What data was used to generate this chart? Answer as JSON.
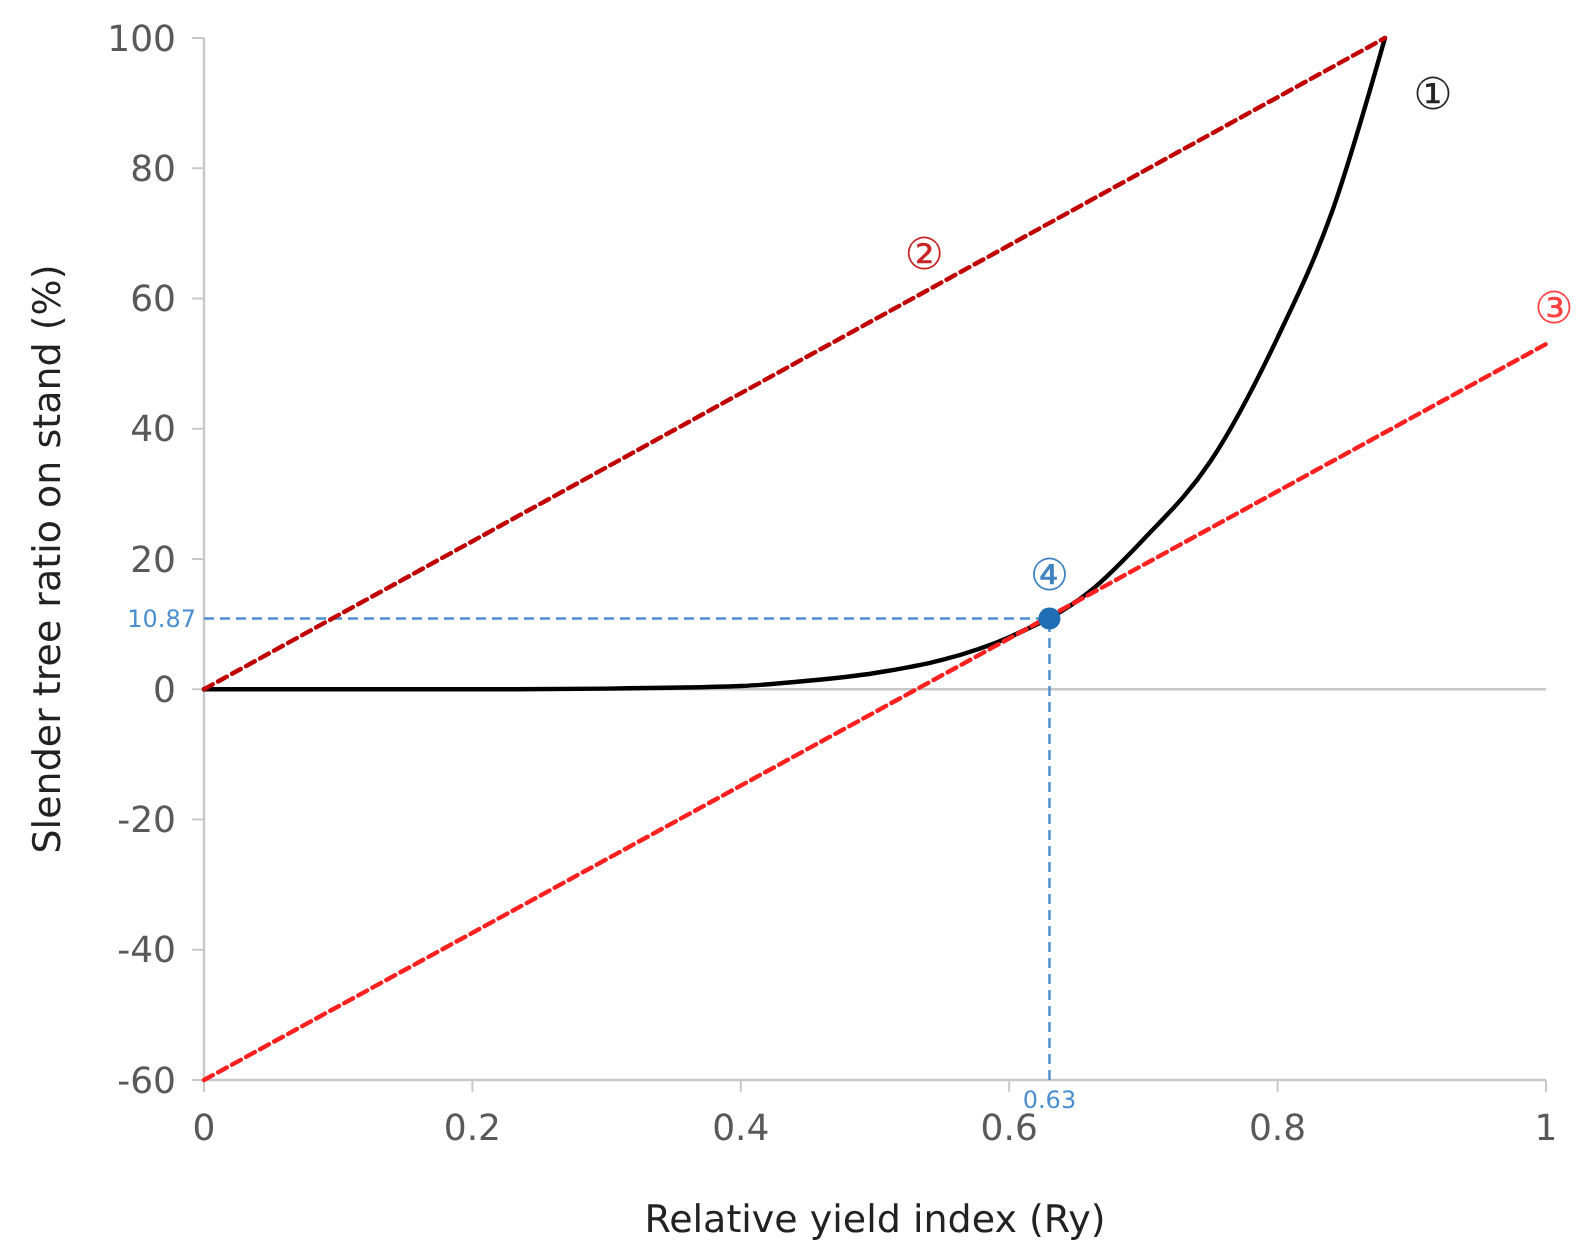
{
  "chart_data": {
    "type": "line",
    "xlabel": "Relative yield index (Ry)",
    "ylabel": "Slender tree ratio on stand (%)",
    "xlim": [
      0,
      1
    ],
    "ylim": [
      -60,
      100
    ],
    "xticks": [
      0,
      0.2,
      0.4,
      0.6,
      0.8,
      1
    ],
    "yticks": [
      -60,
      -40,
      -20,
      0,
      20,
      40,
      60,
      80,
      100
    ],
    "legend": false,
    "marker": "none",
    "series": [
      {
        "name": "①",
        "color": "#000000",
        "line_style": "solid",
        "x": [
          0,
          0.2,
          0.3,
          0.4,
          0.45,
          0.5,
          0.55,
          0.6,
          0.63,
          0.66,
          0.7,
          0.75,
          0.8,
          0.84,
          0.88
        ],
        "values": [
          0,
          0,
          0.1,
          0.5,
          1.3,
          2.5,
          4.5,
          8,
          null,
          15,
          23,
          35,
          54,
          73,
          100
        ]
      },
      {
        "name": "②",
        "color": "#c00000",
        "line_style": "dashed",
        "x": [
          0,
          0.88
        ],
        "values": [
          0,
          100
        ]
      },
      {
        "name": "③",
        "color": "#ff2020",
        "line_style": "dashed",
        "x": [
          0,
          1
        ],
        "values": [
          -60,
          53
        ]
      },
      {
        "name": "④",
        "type": "scatter",
        "color": "#1f6eb4",
        "marker": "circle",
        "x": [
          0.63
        ],
        "values": [
          10.87
        ]
      }
    ],
    "ref_lines": [
      {
        "axis": "y",
        "value": 0,
        "color": "#c8c8c8",
        "line_style": "solid"
      },
      {
        "axis": "y",
        "value": 10.87,
        "label": "10.87",
        "color": "#4a8fd0",
        "line_style": "dashed"
      },
      {
        "axis": "x",
        "value": 0.63,
        "label": "0.63",
        "color": "#4a8fd0",
        "line_style": "dashed"
      }
    ]
  }
}
